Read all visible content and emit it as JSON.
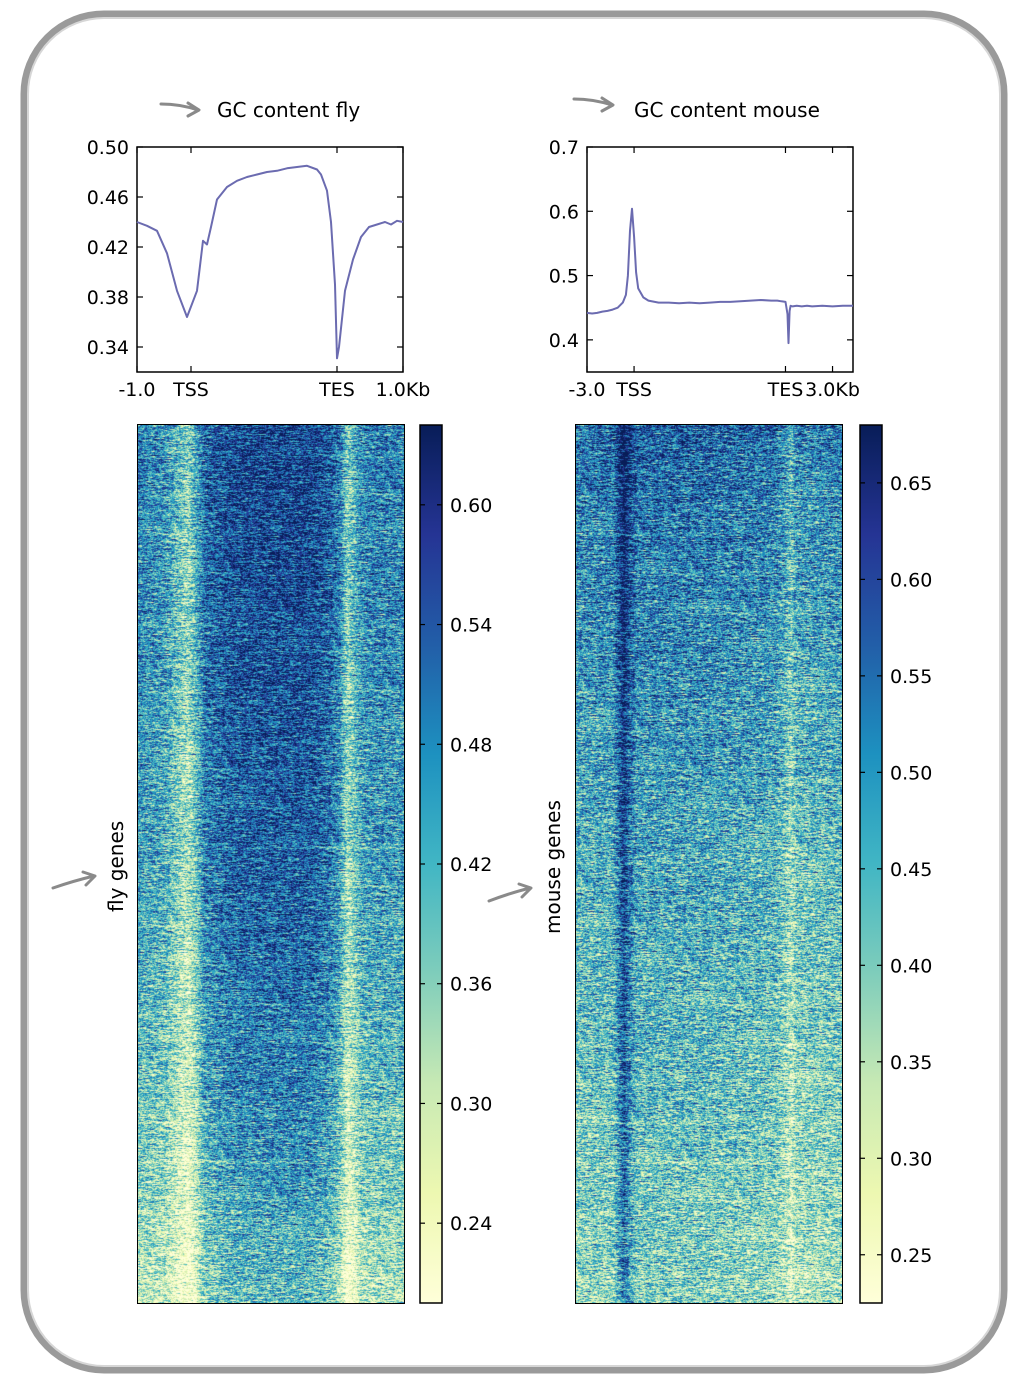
{
  "chart_data": [
    {
      "type": "line",
      "title": "GC content fly",
      "x_ticks": [
        "-1.0",
        "TSS",
        "TES",
        "1.0Kb"
      ],
      "ylim": [
        0.32,
        0.5
      ],
      "y_ticks": [
        "0.50",
        "0.46",
        "0.42",
        "0.38",
        "0.34"
      ],
      "y_tick_values": [
        0.5,
        0.46,
        0.42,
        0.38,
        0.34
      ],
      "series": [
        {
          "color": "#6b6bb0",
          "x": [
            0,
            5,
            10,
            15,
            20,
            25,
            30,
            33,
            35,
            37,
            40,
            45,
            50,
            55,
            60,
            65,
            70,
            75,
            80,
            85,
            90,
            92,
            95,
            97,
            99,
            100,
            101,
            104,
            108,
            112,
            116,
            120,
            124,
            127,
            130,
            133
          ],
          "y": [
            0.44,
            0.437,
            0.433,
            0.415,
            0.385,
            0.364,
            0.385,
            0.425,
            0.422,
            0.436,
            0.458,
            0.468,
            0.473,
            0.476,
            0.478,
            0.48,
            0.481,
            0.483,
            0.484,
            0.485,
            0.482,
            0.478,
            0.465,
            0.44,
            0.39,
            0.331,
            0.34,
            0.385,
            0.41,
            0.428,
            0.436,
            0.438,
            0.44,
            0.438,
            0.441,
            0.44
          ]
        }
      ]
    },
    {
      "type": "line",
      "title": "GC content mouse",
      "x_ticks": [
        "-3.0",
        "TSS",
        "TES",
        "3.0Kb"
      ],
      "ylim": [
        0.35,
        0.7
      ],
      "y_ticks": [
        "0.7",
        "0.6",
        "0.5",
        "0.4"
      ],
      "y_tick_values": [
        0.7,
        0.6,
        0.5,
        0.4
      ],
      "series": [
        {
          "color": "#6b6bb0",
          "x": [
            0,
            5,
            10,
            15,
            20,
            25,
            30,
            35,
            38,
            40,
            42,
            44,
            46,
            48,
            50,
            55,
            60,
            70,
            80,
            90,
            100,
            110,
            120,
            130,
            140,
            150,
            160,
            170,
            180,
            186,
            190,
            194,
            196,
            197,
            198,
            199,
            201,
            205,
            210,
            215,
            220,
            230,
            240,
            250,
            255,
            260
          ],
          "y": [
            0.442,
            0.441,
            0.442,
            0.444,
            0.445,
            0.447,
            0.45,
            0.458,
            0.47,
            0.5,
            0.57,
            0.604,
            0.56,
            0.505,
            0.48,
            0.466,
            0.461,
            0.458,
            0.458,
            0.457,
            0.458,
            0.457,
            0.458,
            0.459,
            0.459,
            0.46,
            0.461,
            0.462,
            0.461,
            0.461,
            0.46,
            0.459,
            0.44,
            0.395,
            0.445,
            0.453,
            0.452,
            0.453,
            0.452,
            0.453,
            0.452,
            0.453,
            0.452,
            0.453,
            0.453,
            0.453
          ]
        }
      ]
    },
    {
      "type": "heatmap",
      "ylabel": "fly genes",
      "colorbar_ticks": [
        "0.60",
        "0.54",
        "0.48",
        "0.42",
        "0.36",
        "0.30",
        "0.24"
      ],
      "colorbar_values": [
        0.6,
        0.54,
        0.48,
        0.42,
        0.36,
        0.3,
        0.24
      ],
      "colorbar_range": [
        0.2,
        0.64
      ],
      "colormap": [
        "#ffffd9",
        "#edf8b1",
        "#c7e9b4",
        "#7fcdbb",
        "#41b6c4",
        "#1d91c0",
        "#225ea8",
        "#253494",
        "#081d58"
      ],
      "column_profile_x": [
        0,
        0.1,
        0.17,
        0.19,
        0.21,
        0.25,
        0.35,
        0.5,
        0.65,
        0.72,
        0.76,
        0.79,
        0.81,
        0.84,
        0.9,
        1.0
      ],
      "column_profile_value": [
        0.44,
        0.42,
        0.33,
        0.31,
        0.36,
        0.48,
        0.52,
        0.53,
        0.53,
        0.5,
        0.45,
        0.32,
        0.36,
        0.43,
        0.45,
        0.44
      ],
      "row_profile_y": [
        0,
        0.15,
        0.35,
        0.55,
        0.7,
        0.85,
        1.0
      ],
      "row_profile_value": [
        0.05,
        0.04,
        0.02,
        0.0,
        -0.03,
        -0.07,
        -0.13
      ]
    },
    {
      "type": "heatmap",
      "ylabel": "mouse genes",
      "colorbar_ticks": [
        "0.65",
        "0.60",
        "0.55",
        "0.50",
        "0.45",
        "0.40",
        "0.35",
        "0.30",
        "0.25"
      ],
      "colorbar_values": [
        0.65,
        0.6,
        0.55,
        0.5,
        0.45,
        0.4,
        0.35,
        0.3,
        0.25
      ],
      "colorbar_range": [
        0.225,
        0.68
      ],
      "colormap": [
        "#ffffd9",
        "#edf8b1",
        "#c7e9b4",
        "#7fcdbb",
        "#41b6c4",
        "#1d91c0",
        "#225ea8",
        "#253494",
        "#081d58"
      ],
      "column_profile_x": [
        0,
        0.14,
        0.16,
        0.18,
        0.2,
        0.23,
        0.4,
        0.6,
        0.75,
        0.79,
        0.81,
        0.83,
        1.0
      ],
      "column_profile_value": [
        0.47,
        0.48,
        0.56,
        0.64,
        0.56,
        0.49,
        0.49,
        0.48,
        0.47,
        0.43,
        0.38,
        0.44,
        0.46
      ],
      "row_profile_y": [
        0,
        0.1,
        0.3,
        0.5,
        0.7,
        0.85,
        1.0
      ],
      "row_profile_value": [
        0.08,
        0.05,
        0.01,
        -0.02,
        -0.05,
        -0.07,
        -0.1
      ]
    }
  ]
}
